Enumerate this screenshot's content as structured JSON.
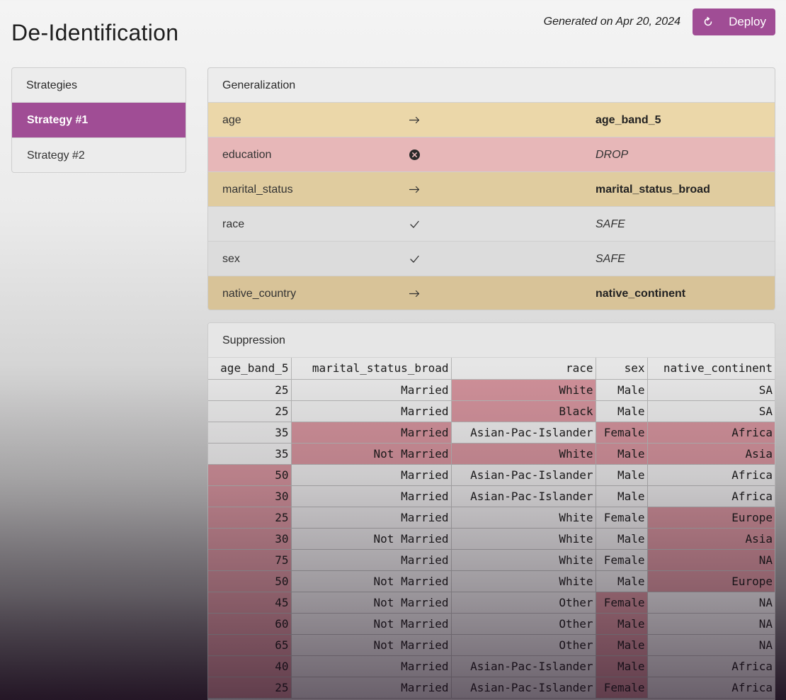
{
  "page": {
    "title": "De-Identification"
  },
  "header": {
    "generated": "Generated on Apr 20, 2024",
    "deploy_label": "Deploy"
  },
  "sidebar": {
    "header": "Strategies",
    "items": [
      {
        "label": "Strategy #1",
        "active": true
      },
      {
        "label": "Strategy #2",
        "active": false
      }
    ]
  },
  "generalization": {
    "title": "Generalization",
    "rows": [
      {
        "name": "age",
        "action": "map",
        "target": "age_band_5",
        "color": "#ebd7a9"
      },
      {
        "name": "education",
        "action": "drop",
        "target": "DROP",
        "color": "#e7b7b8"
      },
      {
        "name": "marital_status",
        "action": "map",
        "target": "marital_status_broad",
        "color": "#e0cc9f"
      },
      {
        "name": "race",
        "action": "safe",
        "target": "SAFE",
        "color": "#dfdfdf"
      },
      {
        "name": "sex",
        "action": "safe",
        "target": "SAFE",
        "color": "#dcdcdc"
      },
      {
        "name": "native_country",
        "action": "map",
        "target": "native_continent",
        "color": "#d8c398"
      }
    ]
  },
  "suppression": {
    "title": "Suppression",
    "columns": [
      "age_band_5",
      "marital_status_broad",
      "race",
      "sex",
      "native_continent"
    ],
    "rows": [
      {
        "cells": [
          "25",
          "Married",
          "White",
          "Male",
          "SA"
        ],
        "suppressed": [
          2
        ]
      },
      {
        "cells": [
          "25",
          "Married",
          "Black",
          "Male",
          "SA"
        ],
        "suppressed": [
          2
        ]
      },
      {
        "cells": [
          "35",
          "Married",
          "Asian-Pac-Islander",
          "Female",
          "Africa"
        ],
        "suppressed": [
          1,
          3,
          4
        ]
      },
      {
        "cells": [
          "35",
          "Not Married",
          "White",
          "Male",
          "Asia"
        ],
        "suppressed": [
          1,
          2,
          3,
          4
        ]
      },
      {
        "cells": [
          "50",
          "Married",
          "Asian-Pac-Islander",
          "Male",
          "Africa"
        ],
        "suppressed": [
          0
        ]
      },
      {
        "cells": [
          "30",
          "Married",
          "Asian-Pac-Islander",
          "Male",
          "Africa"
        ],
        "suppressed": [
          0
        ]
      },
      {
        "cells": [
          "25",
          "Married",
          "White",
          "Female",
          "Europe"
        ],
        "suppressed": [
          0,
          4
        ]
      },
      {
        "cells": [
          "30",
          "Not Married",
          "White",
          "Male",
          "Asia"
        ],
        "suppressed": [
          0,
          4
        ]
      },
      {
        "cells": [
          "75",
          "Married",
          "White",
          "Female",
          "NA"
        ],
        "suppressed": [
          0,
          4
        ]
      },
      {
        "cells": [
          "50",
          "Not Married",
          "White",
          "Male",
          "Europe"
        ],
        "suppressed": [
          0,
          4
        ]
      },
      {
        "cells": [
          "45",
          "Not Married",
          "Other",
          "Female",
          "NA"
        ],
        "suppressed": [
          0,
          3
        ]
      },
      {
        "cells": [
          "60",
          "Not Married",
          "Other",
          "Male",
          "NA"
        ],
        "suppressed": [
          0,
          3
        ]
      },
      {
        "cells": [
          "65",
          "Not Married",
          "Other",
          "Male",
          "NA"
        ],
        "suppressed": [
          0,
          3
        ]
      },
      {
        "cells": [
          "40",
          "Married",
          "Asian-Pac-Islander",
          "Male",
          "Africa"
        ],
        "suppressed": [
          0,
          3
        ]
      },
      {
        "cells": [
          "25",
          "Married",
          "Asian-Pac-Islander",
          "Female",
          "Africa"
        ],
        "suppressed": [
          0,
          3
        ]
      }
    ]
  },
  "icons": {
    "map": "arrow-right-icon",
    "drop": "x-circle-icon",
    "safe": "checkmark-icon",
    "deploy": "refresh-icon"
  }
}
